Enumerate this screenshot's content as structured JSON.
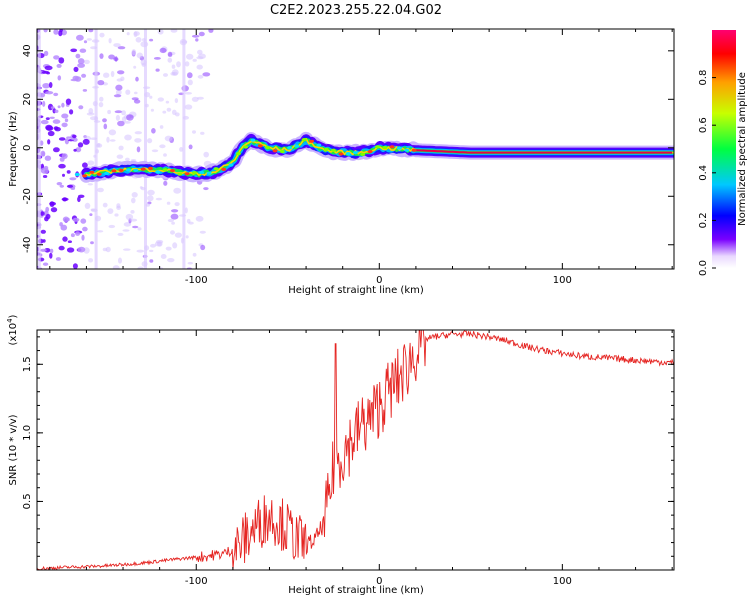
{
  "title": "C2E2.2023.255.22.04.G02",
  "chart_data": [
    {
      "type": "heatmap",
      "title": "C2E2.2023.255.22.04.G02",
      "xlabel": "Height of straight line (km)",
      "ylabel": "Frequency (Hz)",
      "xlim": [
        -187,
        161
      ],
      "ylim": [
        -50,
        49
      ],
      "xticks": [
        -100,
        0,
        100
      ],
      "yticks": [
        -40,
        -20,
        0,
        20,
        40
      ],
      "colorbar": {
        "label": "Normalized spectral amplitude",
        "range": [
          0.0,
          1.0
        ],
        "ticks": [
          "0.0",
          "0.2",
          "0.4",
          "0.6",
          "0.8"
        ]
      },
      "ridge": {
        "x": [
          -187,
          -160,
          -140,
          -120,
          -100,
          -90,
          -80,
          -75,
          -70,
          -60,
          -50,
          -40,
          -30,
          -20,
          -10,
          0,
          20,
          50,
          100,
          161
        ],
        "y": [
          -11,
          -11,
          -9,
          -9,
          -11,
          -10,
          -6,
          0,
          3,
          0,
          -1,
          3,
          -1,
          -2,
          -2,
          0,
          -1,
          -2,
          -2,
          -2
        ]
      }
    },
    {
      "type": "line",
      "xlabel": "Height of straight line (km)",
      "ylabel": "SNR (10 * v/v)",
      "y_scale_label": "(x10",
      "y_scale_exp": "4",
      "y_scale_suffix": ")",
      "xlim": [
        -187,
        161
      ],
      "ylim": [
        0.0,
        1.75
      ],
      "xticks": [
        -100,
        0,
        100
      ],
      "yticks": [
        "0.5",
        "1.0",
        "1.5"
      ],
      "series": [
        {
          "color": "#e52421",
          "x": [
            -187,
            -170,
            -150,
            -130,
            -110,
            -95,
            -85,
            -80,
            -75,
            -70,
            -65,
            -60,
            -55,
            -50,
            -45,
            -40,
            -35,
            -30,
            -27,
            -25,
            -20,
            -15,
            -10,
            -5,
            0,
            5,
            10,
            15,
            20,
            25,
            30,
            40,
            50,
            60,
            70,
            80,
            90,
            100,
            110,
            120,
            130,
            140,
            150,
            161
          ],
          "y": [
            0.01,
            0.02,
            0.03,
            0.05,
            0.08,
            0.1,
            0.12,
            0.15,
            0.2,
            0.28,
            0.35,
            0.4,
            0.36,
            0.3,
            0.22,
            0.18,
            0.22,
            0.35,
            0.55,
            0.75,
            0.85,
            0.95,
            1.05,
            1.1,
            1.2,
            1.3,
            1.38,
            1.48,
            1.6,
            1.68,
            1.7,
            1.72,
            1.72,
            1.7,
            1.67,
            1.63,
            1.6,
            1.58,
            1.56,
            1.55,
            1.54,
            1.53,
            1.52,
            1.51
          ]
        }
      ]
    }
  ]
}
